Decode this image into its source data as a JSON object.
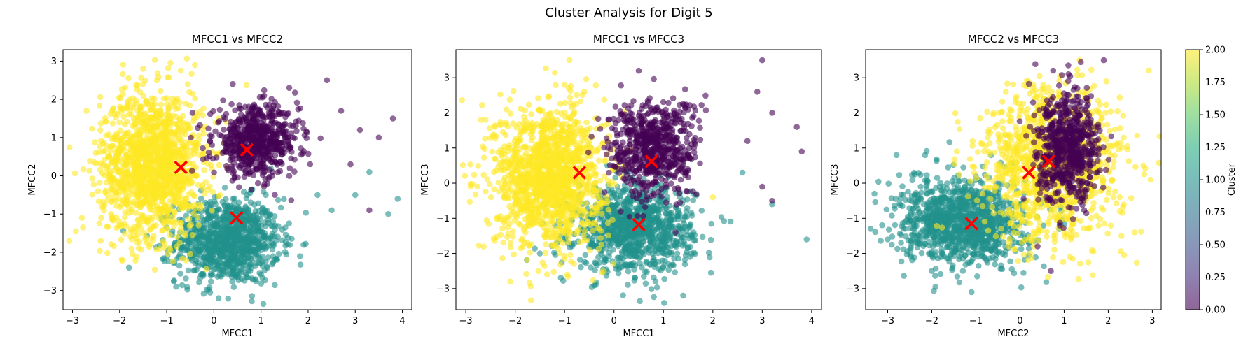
{
  "figure": {
    "suptitle": "Cluster Analysis for Digit 5"
  },
  "colorbar": {
    "label": "Cluster",
    "ticks": [
      "0.00",
      "0.25",
      "0.50",
      "0.75",
      "1.00",
      "1.25",
      "1.50",
      "1.75",
      "2.00"
    ],
    "range": [
      0,
      2
    ],
    "colormap": "viridis",
    "alpha": 0.6
  },
  "colors": {
    "cluster_0": "#440154",
    "cluster_1": "#21918c",
    "cluster_2": "#fde725",
    "centroid": "#ff0000"
  },
  "chart_data": [
    {
      "type": "scatter",
      "title": "MFCC1 vs MFCC2",
      "xlabel": "MFCC1",
      "ylabel": "MFCC2",
      "xlim": [
        -3.2,
        4.2
      ],
      "ylim": [
        -3.5,
        3.3
      ],
      "xticks": [
        -3,
        -2,
        -1,
        0,
        1,
        2,
        3,
        4
      ],
      "yticks": [
        -3,
        -2,
        -1,
        0,
        1,
        2,
        3
      ],
      "grid": false,
      "clusters": [
        {
          "cluster": 2,
          "cx": -1.3,
          "cy": 0.3,
          "sx": 0.55,
          "sy": 0.95,
          "n": 1400,
          "tail": [
            [
              -2.8,
              -1.1
            ],
            [
              -2.7,
              1.7
            ],
            [
              -1.5,
              2.8
            ],
            [
              -0.4,
              2.9
            ],
            [
              0.1,
              1.5
            ],
            [
              -2.4,
              -1.7
            ]
          ]
        },
        {
          "cluster": 0,
          "cx": 0.9,
          "cy": 0.9,
          "sx": 0.45,
          "sy": 0.45,
          "n": 650,
          "tail": [
            [
              2.4,
              2.5
            ],
            [
              3.1,
              1.2
            ],
            [
              3.5,
              1.0
            ],
            [
              3.8,
              1.5
            ],
            [
              2.9,
              0.3
            ],
            [
              3.3,
              -0.9
            ],
            [
              1.6,
              2.3
            ],
            [
              0.4,
              2.4
            ],
            [
              2.7,
              1.7
            ]
          ]
        },
        {
          "cluster": 1,
          "cx": 0.3,
          "cy": -1.7,
          "sx": 0.55,
          "sy": 0.55,
          "n": 1000,
          "tail": [
            [
              3.0,
              -0.5
            ],
            [
              3.3,
              0.1
            ],
            [
              3.7,
              -1.0
            ],
            [
              3.9,
              -0.6
            ],
            [
              2.2,
              -0.5
            ],
            [
              -1.8,
              -2.4
            ],
            [
              0.1,
              -3.2
            ],
            [
              -0.8,
              -2.9
            ],
            [
              2.5,
              -0.9
            ]
          ]
        }
      ],
      "centroids": [
        {
          "x": -0.7,
          "y": 0.22
        },
        {
          "x": 0.7,
          "y": 0.68
        },
        {
          "x": 0.48,
          "y": -1.1
        }
      ]
    },
    {
      "type": "scatter",
      "title": "MFCC1 vs MFCC3",
      "xlabel": "MFCC1",
      "ylabel": "MFCC3",
      "xlim": [
        -3.2,
        4.2
      ],
      "ylim": [
        -3.6,
        3.8
      ],
      "xticks": [
        -3,
        -2,
        -1,
        0,
        1,
        2,
        3,
        4
      ],
      "yticks": [
        -3,
        -2,
        -1,
        0,
        1,
        2,
        3
      ],
      "grid": false,
      "clusters": [
        {
          "cluster": 2,
          "cx": -1.3,
          "cy": 0.2,
          "sx": 0.55,
          "sy": 1.0,
          "n": 1400,
          "tail": [
            [
              -2.6,
              1.8
            ],
            [
              -1.0,
              2.8
            ],
            [
              -0.6,
              2.6
            ],
            [
              -2.1,
              -2.8
            ],
            [
              -2.9,
              -0.1
            ],
            [
              2.0,
              -0.4
            ]
          ]
        },
        {
          "cluster": 0,
          "cx": 0.8,
          "cy": 1.0,
          "sx": 0.45,
          "sy": 0.7,
          "n": 650,
          "tail": [
            [
              3.0,
              3.5
            ],
            [
              3.2,
              2.0
            ],
            [
              3.7,
              1.6
            ],
            [
              2.7,
              1.2
            ],
            [
              3.2,
              -0.5
            ],
            [
              3.0,
              -0.1
            ],
            [
              0.5,
              3.2
            ],
            [
              3.8,
              0.9
            ],
            [
              2.9,
              2.6
            ]
          ]
        },
        {
          "cluster": 1,
          "cx": 0.4,
          "cy": -1.3,
          "sx": 0.6,
          "sy": 0.6,
          "n": 1000,
          "tail": [
            [
              3.9,
              -1.6
            ],
            [
              3.2,
              -0.6
            ],
            [
              2.6,
              0.3
            ],
            [
              -1.5,
              -2.0
            ],
            [
              -0.4,
              -2.9
            ],
            [
              1.4,
              -3.2
            ]
          ]
        }
      ],
      "centroids": [
        {
          "x": -0.7,
          "y": 0.3
        },
        {
          "x": 0.76,
          "y": 0.62
        },
        {
          "x": 0.5,
          "y": -1.18
        }
      ]
    },
    {
      "type": "scatter",
      "title": "MFCC2 vs MFCC3",
      "xlabel": "MFCC2",
      "ylabel": "MFCC3",
      "xlim": [
        -3.5,
        3.2
      ],
      "ylim": [
        -3.6,
        3.8
      ],
      "xticks": [
        -3,
        -2,
        -1,
        0,
        1,
        2,
        3
      ],
      "yticks": [
        -3,
        -2,
        -1,
        0,
        1,
        2,
        3
      ],
      "grid": false,
      "clusters": [
        {
          "cluster": 2,
          "cx": 0.7,
          "cy": 0.5,
          "sx": 0.8,
          "sy": 1.1,
          "n": 1100,
          "tail": [
            [
              -0.6,
              2.0
            ],
            [
              0.3,
              2.8
            ],
            [
              2.8,
              0.5
            ],
            [
              2.6,
              -1.4
            ],
            [
              2.3,
              -1.5
            ],
            [
              -0.1,
              2.4
            ]
          ]
        },
        {
          "cluster": 0,
          "cx": 1.1,
          "cy": 1.0,
          "sx": 0.35,
          "sy": 0.75,
          "n": 650,
          "tail": [
            [
              1.9,
              3.5
            ],
            [
              1.1,
              3.1
            ],
            [
              1.3,
              2.7
            ],
            [
              0.9,
              -1.2
            ],
            [
              0.4,
              -1.8
            ],
            [
              0.7,
              -2.5
            ]
          ]
        },
        {
          "cluster": 1,
          "cx": -1.3,
          "cy": -1.1,
          "sx": 0.7,
          "sy": 0.6,
          "n": 1100,
          "tail": [
            [
              -3.3,
              -0.3
            ],
            [
              -2.8,
              0.8
            ],
            [
              -1.1,
              -3.1
            ],
            [
              -2.0,
              -2.5
            ],
            [
              0.1,
              -0.5
            ],
            [
              -3.0,
              -1.6
            ]
          ]
        }
      ],
      "centroids": [
        {
          "x": -1.1,
          "y": -1.15
        },
        {
          "x": 0.2,
          "y": 0.3
        },
        {
          "x": 0.65,
          "y": 0.62
        }
      ]
    }
  ]
}
